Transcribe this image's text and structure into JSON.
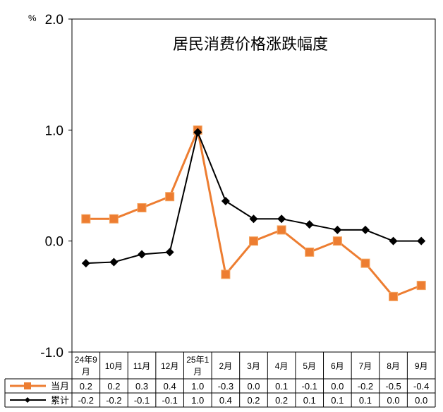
{
  "chart_data": {
    "type": "line",
    "title": "居民消费价格涨跌幅度",
    "ylabel": "%",
    "ylim": [
      -1.0,
      2.0
    ],
    "yticks": [
      "2.0",
      "1.0",
      "0.0",
      "-1.0"
    ],
    "ytick_values": [
      2.0,
      1.0,
      0.0,
      -1.0
    ],
    "categories": [
      "24年9月",
      "10月",
      "11月",
      "12月",
      "25年1月",
      "2月",
      "3月",
      "4月",
      "5月",
      "6月",
      "7月",
      "8月",
      "9月"
    ],
    "series": [
      {
        "name": "当月",
        "color": "#ED7D31",
        "marker": "square",
        "values": [
          0.2,
          0.2,
          0.3,
          0.4,
          1.0,
          -0.3,
          0.0,
          0.1,
          -0.1,
          0.0,
          -0.2,
          -0.5,
          -0.4
        ],
        "labels": [
          "0.2",
          "0.2",
          "0.3",
          "0.4",
          "1.0",
          "-0.3",
          "0.0",
          "0.1",
          "-0.1",
          "0.0",
          "-0.2",
          "-0.5",
          "-0.4"
        ]
      },
      {
        "name": "累计",
        "color": "#000000",
        "marker": "diamond",
        "values": [
          -0.2,
          -0.19,
          -0.12,
          -0.1,
          0.98,
          0.36,
          0.2,
          0.2,
          0.15,
          0.1,
          0.1,
          0.0,
          0.0
        ],
        "labels": [
          "-0.2",
          "-0.2",
          "-0.1",
          "-0.1",
          "1.0",
          "0.4",
          "0.2",
          "0.2",
          "0.1",
          "0.1",
          "0.1",
          "0.0",
          "0.0"
        ]
      }
    ],
    "grid": false,
    "legend": "data-table-left"
  }
}
